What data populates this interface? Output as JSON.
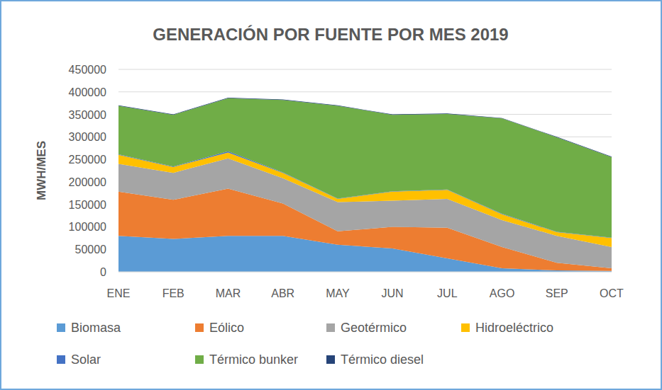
{
  "chart_data": {
    "type": "area",
    "stacked": true,
    "title": "GENERACIÓN POR FUENTE POR MES 2019",
    "y_label": "MWH/MES",
    "categories": [
      "ENE",
      "FEB",
      "MAR",
      "ABR",
      "MAY",
      "JUN",
      "JUL",
      "AGO",
      "SEP",
      "OCT"
    ],
    "series": [
      {
        "name": "Biomasa",
        "color": "#5B9BD5",
        "values": [
          80000,
          73000,
          80000,
          80000,
          60000,
          52000,
          30000,
          8000,
          3000,
          2000
        ]
      },
      {
        "name": "Eólico",
        "color": "#ED7D31",
        "values": [
          98000,
          87000,
          105000,
          72000,
          30000,
          48000,
          68000,
          47000,
          17000,
          6000
        ]
      },
      {
        "name": "Geotérmico",
        "color": "#A5A5A5",
        "values": [
          62000,
          60000,
          67000,
          56000,
          65000,
          58000,
          64000,
          60000,
          60000,
          47000
        ]
      },
      {
        "name": "Hidroeléctrico",
        "color": "#FFC000",
        "values": [
          20000,
          13000,
          13000,
          12000,
          7000,
          20000,
          20000,
          13000,
          8000,
          20000
        ]
      },
      {
        "name": "Solar",
        "color": "#4472C4",
        "values": [
          1000,
          1000,
          3000,
          1000,
          1000,
          1000,
          1000,
          1000,
          1000,
          1000
        ]
      },
      {
        "name": "Térmico bunker",
        "color": "#70AD47",
        "values": [
          108000,
          115000,
          118000,
          161000,
          206000,
          170000,
          168000,
          212000,
          210000,
          179000
        ]
      },
      {
        "name": "Térmico diesel",
        "color": "#264478",
        "values": [
          1000,
          1000,
          1000,
          1000,
          1000,
          1000,
          1000,
          1000,
          1000,
          1000
        ]
      }
    ],
    "ylim": [
      0,
      450000
    ],
    "yticks": [
      0,
      50000,
      100000,
      150000,
      200000,
      250000,
      300000,
      350000,
      400000,
      450000
    ],
    "grid": true,
    "legend": "bottom"
  }
}
